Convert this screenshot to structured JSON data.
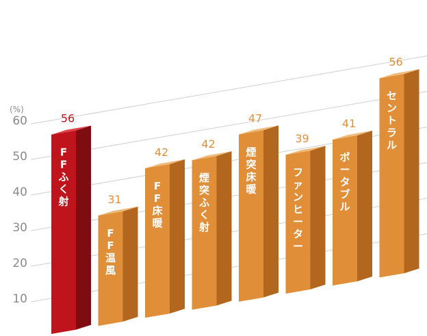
{
  "chart_data": {
    "type": "bar",
    "title": "",
    "xlabel": "",
    "ylabel": "(%)",
    "ylim": [
      0,
      60
    ],
    "yticks": [
      10,
      20,
      30,
      40,
      50,
      60
    ],
    "grid": true,
    "categories": [
      "FFふく射",
      "FF温風",
      "FF床暖",
      "煙突ふく射",
      "煙突床暖",
      "ファンヒーター",
      "ポータブル",
      "セントラル"
    ],
    "category_display": [
      [
        "F",
        "F",
        "ふ",
        "く",
        "射"
      ],
      [
        "F",
        "F",
        "温",
        "風"
      ],
      [
        "F",
        "F",
        "床",
        "暖"
      ],
      [
        "煙",
        "突",
        "ふ",
        "く",
        "射"
      ],
      [
        "煙",
        "突",
        "床",
        "暖"
      ],
      [
        "フ",
        "ァ",
        "ン",
        "ヒ",
        "ー",
        "タ",
        "ー"
      ],
      [
        "ポ",
        "ー",
        "タ",
        "ブ",
        "ル"
      ],
      [
        "セ",
        "ン",
        "ト",
        "ラ",
        "ル"
      ]
    ],
    "values": [
      56,
      31,
      42,
      42,
      47,
      39,
      41,
      56
    ],
    "highlight_index": 0,
    "colors": {
      "highlight_front": "#c0141c",
      "highlight_side": "#7e0c10",
      "highlight_top": "#e0444a",
      "highlight_value": "#c0141c",
      "bar_front": "#e08f38",
      "bar_side": "#b2661e",
      "bar_top": "#f0bb78",
      "bar_value": "#e08f38",
      "grid": "#cfcfcf",
      "tick": "#8a8a8a"
    }
  }
}
